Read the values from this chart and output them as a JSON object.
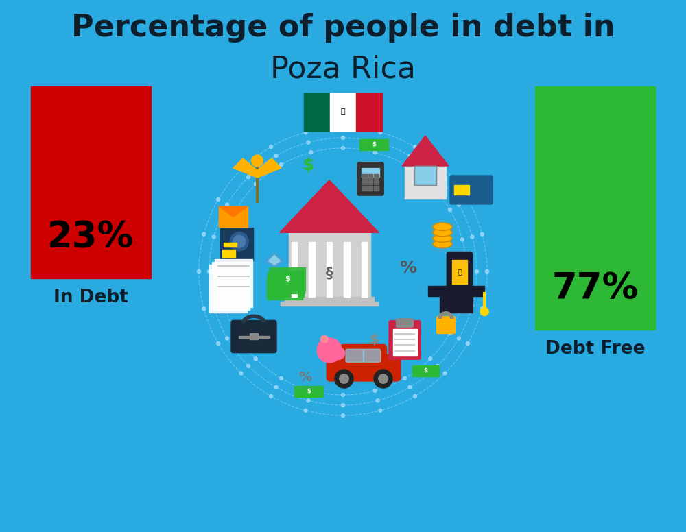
{
  "title_line1": "Percentage of people in debt in",
  "title_line2": "Poza Rica",
  "title_color": "#0d1f2d",
  "background_color": "#29ABE2",
  "bar_in_debt_color": "#CC0000",
  "bar_debt_free_color": "#2DB835",
  "bar_label_color": "#000000",
  "category_label_color": "#0d1f2d",
  "in_debt_pct": "23%",
  "debt_free_pct": "77%",
  "in_debt_label": "In Debt",
  "debt_free_label": "Debt Free",
  "title_fontsize": 32,
  "subtitle_fontsize": 32,
  "bar_pct_fontsize": 38,
  "bar_cat_fontsize": 19,
  "flag_green": "#006847",
  "flag_white": "#FFFFFF",
  "flag_red": "#CE1126",
  "circle_color": "#29ABE2",
  "dashed_circle_color": "#AADDFF",
  "bank_body_color": "#D8D8D8",
  "bank_roof_color": "#CC2244",
  "house_body_color": "#E8E8E8",
  "house_roof_color": "#CC2244",
  "money_color": "#2DB835",
  "coin_color": "#FFB300",
  "safe_color": "#1A3A5C",
  "car_color": "#CC2200",
  "grad_cap_color": "#1A1A2E",
  "briefcase_color": "#1A1A2E",
  "eagle_color": "#FFB300",
  "envelope_color": "#FF8C00",
  "piggy_color": "#FF6699"
}
